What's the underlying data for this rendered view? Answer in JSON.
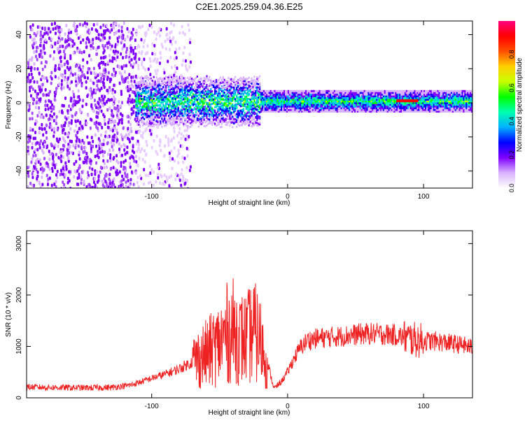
{
  "title": "C2E1.2025.259.04.36.E25",
  "chart_data": [
    {
      "type": "heatmap",
      "xlabel": "Height of straight line (km)",
      "ylabel": "Frequency (Hz)",
      "xlim": [
        -192,
        136
      ],
      "ylim": [
        -50,
        48
      ],
      "x_ticks": [
        -100,
        0,
        100
      ],
      "y_ticks": [
        -40,
        -20,
        0,
        20,
        40
      ],
      "colorbar": {
        "label": "Normalized spectral amplitude",
        "range": [
          0,
          1
        ],
        "ticks": [
          "0.0",
          "0.2",
          "0.4",
          "0.6",
          "0.8"
        ],
        "colors": [
          "#ffffff",
          "#d9b3ff",
          "#8000ff",
          "#0000ff",
          "#00b0ff",
          "#00ffb0",
          "#00ff00",
          "#c8ff00",
          "#ffd000",
          "#ff5000",
          "#ff0000",
          "#ff0080"
        ]
      },
      "regions": [
        {
          "name": "noise",
          "x_range": [
            -192,
            -112
          ],
          "freq_range": [
            -50,
            48
          ],
          "amplitude": 0.1
        },
        {
          "name": "fading noise",
          "x_range": [
            -112,
            -72
          ],
          "freq_range": [
            -50,
            48
          ],
          "amplitude": 0.05
        },
        {
          "name": "signal band",
          "x_range": [
            -112,
            136
          ],
          "center_freq": 1,
          "bandwidth": 6,
          "amplitude": 0.5
        },
        {
          "name": "peak",
          "x_range": [
            80,
            96
          ],
          "center_freq": 1,
          "amplitude": 0.95
        }
      ]
    },
    {
      "type": "line",
      "xlabel": "Height of straight line (km)",
      "ylabel": "SNR (10 * v/v)",
      "xlim": [
        -192,
        136
      ],
      "ylim": [
        0,
        3250
      ],
      "x_ticks": [
        -100,
        0,
        100
      ],
      "y_ticks": [
        0,
        1000,
        2000,
        3000
      ],
      "line_color": "#ee2222",
      "x": [
        -192,
        -170,
        -150,
        -130,
        -115,
        -100,
        -90,
        -80,
        -70,
        -60,
        -50,
        -45,
        -40,
        -35,
        -30,
        -25,
        -20,
        -15,
        -10,
        -5,
        0,
        5,
        10,
        15,
        20,
        30,
        40,
        50,
        60,
        70,
        80,
        85,
        90,
        95,
        100,
        110,
        120,
        130,
        136
      ],
      "y": [
        210,
        200,
        195,
        200,
        250,
        380,
        460,
        560,
        700,
        850,
        1050,
        1250,
        1300,
        1150,
        1150,
        1300,
        1100,
        700,
        180,
        300,
        500,
        780,
        1000,
        1120,
        1150,
        1180,
        1200,
        1230,
        1250,
        1240,
        1220,
        1180,
        1150,
        1120,
        1110,
        1100,
        1060,
        1020,
        980
      ]
    }
  ]
}
